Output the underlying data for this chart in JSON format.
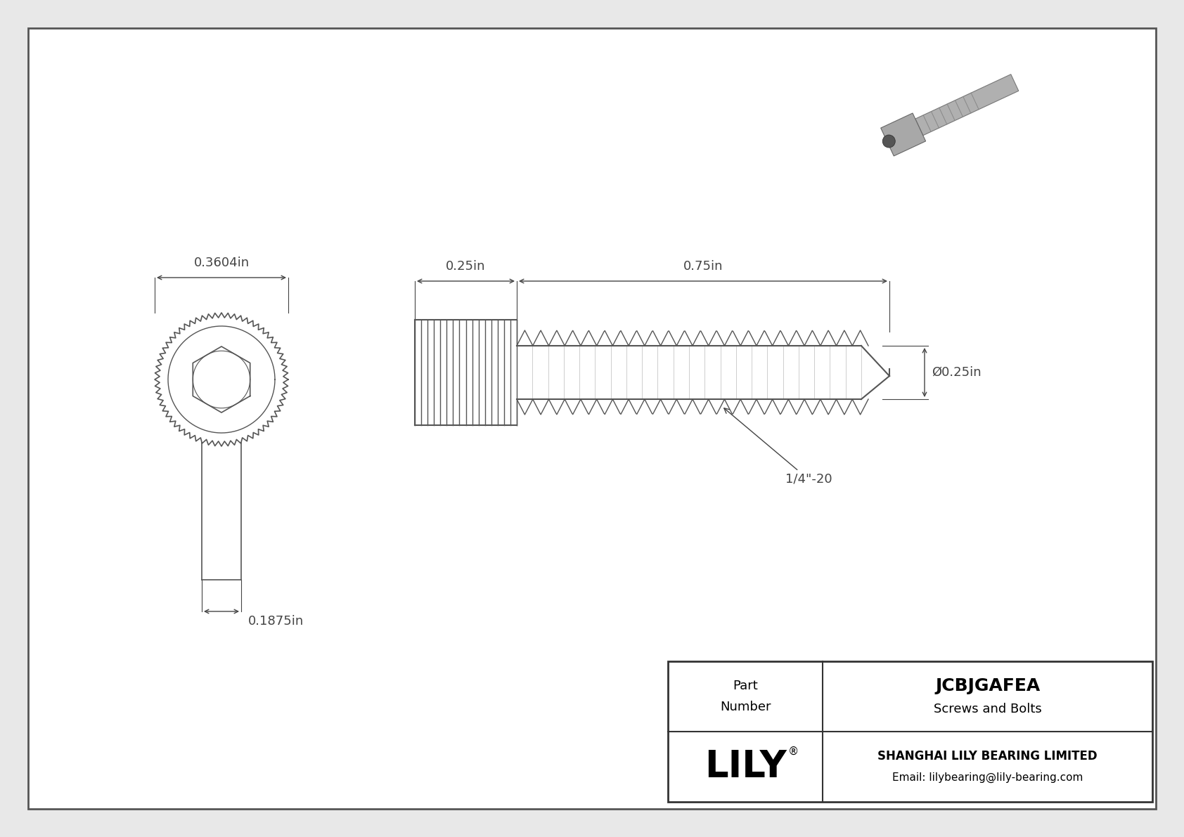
{
  "bg_color": "#e8e8e8",
  "drawing_bg": "#ffffff",
  "border_color": "#555555",
  "line_color": "#555555",
  "dim_color": "#444444",
  "title_company": "SHANGHAI LILY BEARING LIMITED",
  "title_email": "Email: lilybearing@lily-bearing.com",
  "part_number": "JCBJGAFEA",
  "part_category": "Screws and Bolts",
  "brand": "LILY",
  "dim_head_diameter": "0.3604in",
  "dim_head_height": "0.1875in",
  "dim_body_length": "0.75in",
  "dim_head_length": "0.25in",
  "dim_shaft_diameter": "Ø0.25in",
  "dim_thread": "1/4\"-20"
}
